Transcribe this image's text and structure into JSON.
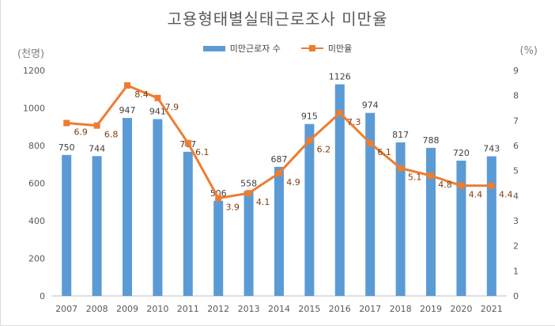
{
  "chart_data": {
    "type": "bar+line",
    "title": "고용형태별실태근로조사 미만율",
    "left_unit": "(천명)",
    "right_unit": "(%)",
    "categories": [
      "2007",
      "2008",
      "2009",
      "2010",
      "2011",
      "2012",
      "2013",
      "2014",
      "2015",
      "2016",
      "2017",
      "2018",
      "2019",
      "2020",
      "2021"
    ],
    "series": [
      {
        "name": "미만근로자 수",
        "type": "bar",
        "axis": "left",
        "color": "#5b9bd5",
        "values": [
          750,
          744,
          947,
          941,
          767,
          506,
          558,
          687,
          915,
          1126,
          974,
          817,
          788,
          720,
          743
        ]
      },
      {
        "name": "미만율",
        "type": "line",
        "axis": "right",
        "color": "#ed7d31",
        "values": [
          6.9,
          6.8,
          8.4,
          7.9,
          6.1,
          3.9,
          4.1,
          4.9,
          6.2,
          7.3,
          6.1,
          5.1,
          4.8,
          4.4,
          4.4
        ]
      }
    ],
    "left_axis": {
      "min": 0,
      "max": 1200,
      "step": 200,
      "ticks": [
        "0",
        "200",
        "400",
        "600",
        "800",
        "1000",
        "1200"
      ]
    },
    "right_axis": {
      "min": 0,
      "max": 9,
      "step": 1,
      "ticks": [
        "0",
        "1",
        "2",
        "3",
        "4",
        "5",
        "6",
        "7",
        "8",
        "9"
      ]
    },
    "grid": false,
    "legend": "top-center"
  }
}
